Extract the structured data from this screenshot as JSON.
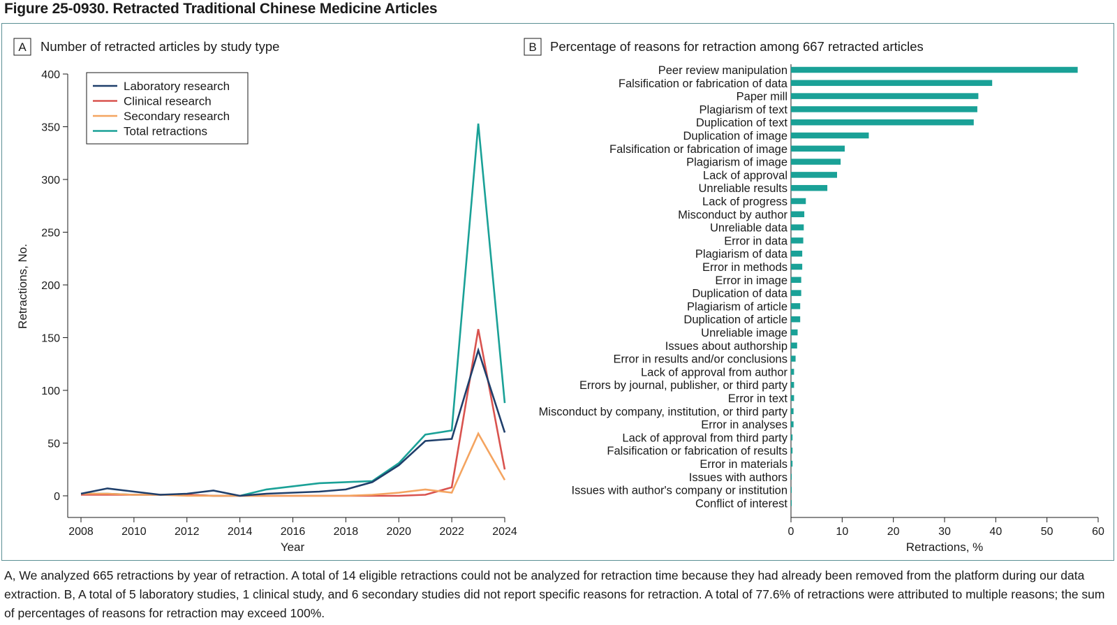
{
  "figure_title": "Figure 25-0930. Retracted Traditional Chinese Medicine Articles",
  "caption": "A, We analyzed 665 retractions by year of retraction. A total of 14 eligible retractions could not be analyzed for retraction time because they had already been removed from the platform during our data extraction. B, A total of 5 laboratory studies, 1 clinical study, and 6 secondary studies did not report specific reasons for retraction. A total of 77.6% of retractions were attributed to multiple reasons; the sum of percentages of reasons for retraction may exceed 100%.",
  "panel_a": {
    "letter": "A",
    "title": "Number of retracted articles by study type"
  },
  "panel_b": {
    "letter": "B",
    "title": "Percentage of reasons for retraction among 667 retracted articles"
  },
  "chart_data": [
    {
      "type": "line",
      "title": "Number of retracted articles by study type",
      "xlabel": "Year",
      "ylabel": "Retractions, No.",
      "xlim": [
        2008,
        2024
      ],
      "ylim": [
        0,
        400
      ],
      "x_ticks": [
        2008,
        2010,
        2012,
        2014,
        2016,
        2018,
        2020,
        2022,
        2024
      ],
      "y_ticks": [
        0,
        50,
        100,
        150,
        200,
        250,
        300,
        350,
        400
      ],
      "legend_position": "top-left",
      "x": [
        2008,
        2009,
        2010,
        2011,
        2012,
        2013,
        2014,
        2015,
        2016,
        2017,
        2018,
        2019,
        2020,
        2021,
        2022,
        2023,
        2024
      ],
      "series": [
        {
          "name": "Laboratory research",
          "color": "#1f3f6b",
          "values": [
            2,
            7,
            4,
            1,
            2,
            5,
            0,
            2,
            3,
            4,
            6,
            13,
            29,
            52,
            54,
            138,
            60
          ]
        },
        {
          "name": "Clinical research",
          "color": "#d9534f",
          "values": [
            1,
            1,
            1,
            1,
            1,
            0,
            0,
            0,
            0,
            0,
            0,
            0,
            0,
            1,
            8,
            158,
            25
          ]
        },
        {
          "name": "Secondary research",
          "color": "#f4a460",
          "values": [
            2,
            2,
            1,
            1,
            0,
            0,
            0,
            0,
            0,
            0,
            0,
            1,
            3,
            6,
            3,
            59,
            15
          ]
        },
        {
          "name": "Total retractions",
          "color": "#1aa197",
          "values": [
            2,
            2,
            1,
            1,
            1,
            0,
            0,
            6,
            9,
            12,
            13,
            14,
            31,
            58,
            62,
            353,
            88
          ]
        }
      ]
    },
    {
      "type": "bar",
      "orientation": "horizontal",
      "title": "Percentage of reasons for retraction among 667 retracted articles",
      "xlabel": "Retractions, %",
      "ylabel": "",
      "xlim": [
        0,
        60
      ],
      "x_ticks": [
        0,
        10,
        20,
        30,
        40,
        50,
        60
      ],
      "color": "#1aa197",
      "categories": [
        "Peer review manipulation",
        "Falsification or fabrication of data",
        "Paper mill",
        "Plagiarism of text",
        "Duplication of text",
        "Duplication of image",
        "Falsification or fabrication of image",
        "Plagiarism of image",
        "Lack of approval",
        "Unreliable results",
        "Lack of progress",
        "Misconduct by author",
        "Unreliable data",
        "Error in data",
        "Plagiarism of data",
        "Error in methods",
        "Error in image",
        "Duplication of data",
        "Plagiarism of article",
        "Duplication of article",
        "Unreliable image",
        "Issues about authorship",
        "Error in results and/or conclusions",
        "Lack of approval from author",
        "Errors by journal, publisher, or third party",
        "Error in text",
        "Misconduct by company, institution, or third party",
        "Error in analyses",
        "Lack of approval from third party",
        "Falsification or fabrication of results",
        "Error in materials",
        "Issues with authors",
        "Issues with author's company or institution",
        "Conflict of interest"
      ],
      "values": [
        56,
        39.3,
        36.6,
        36.4,
        35.7,
        15.2,
        10.5,
        9.7,
        9.0,
        7.1,
        2.9,
        2.6,
        2.5,
        2.4,
        2.2,
        2.2,
        2.0,
        2.0,
        1.8,
        1.8,
        1.3,
        1.2,
        0.9,
        0.6,
        0.6,
        0.6,
        0.5,
        0.5,
        0.3,
        0.3,
        0.3,
        0.15,
        0.15,
        0.15
      ]
    }
  ]
}
